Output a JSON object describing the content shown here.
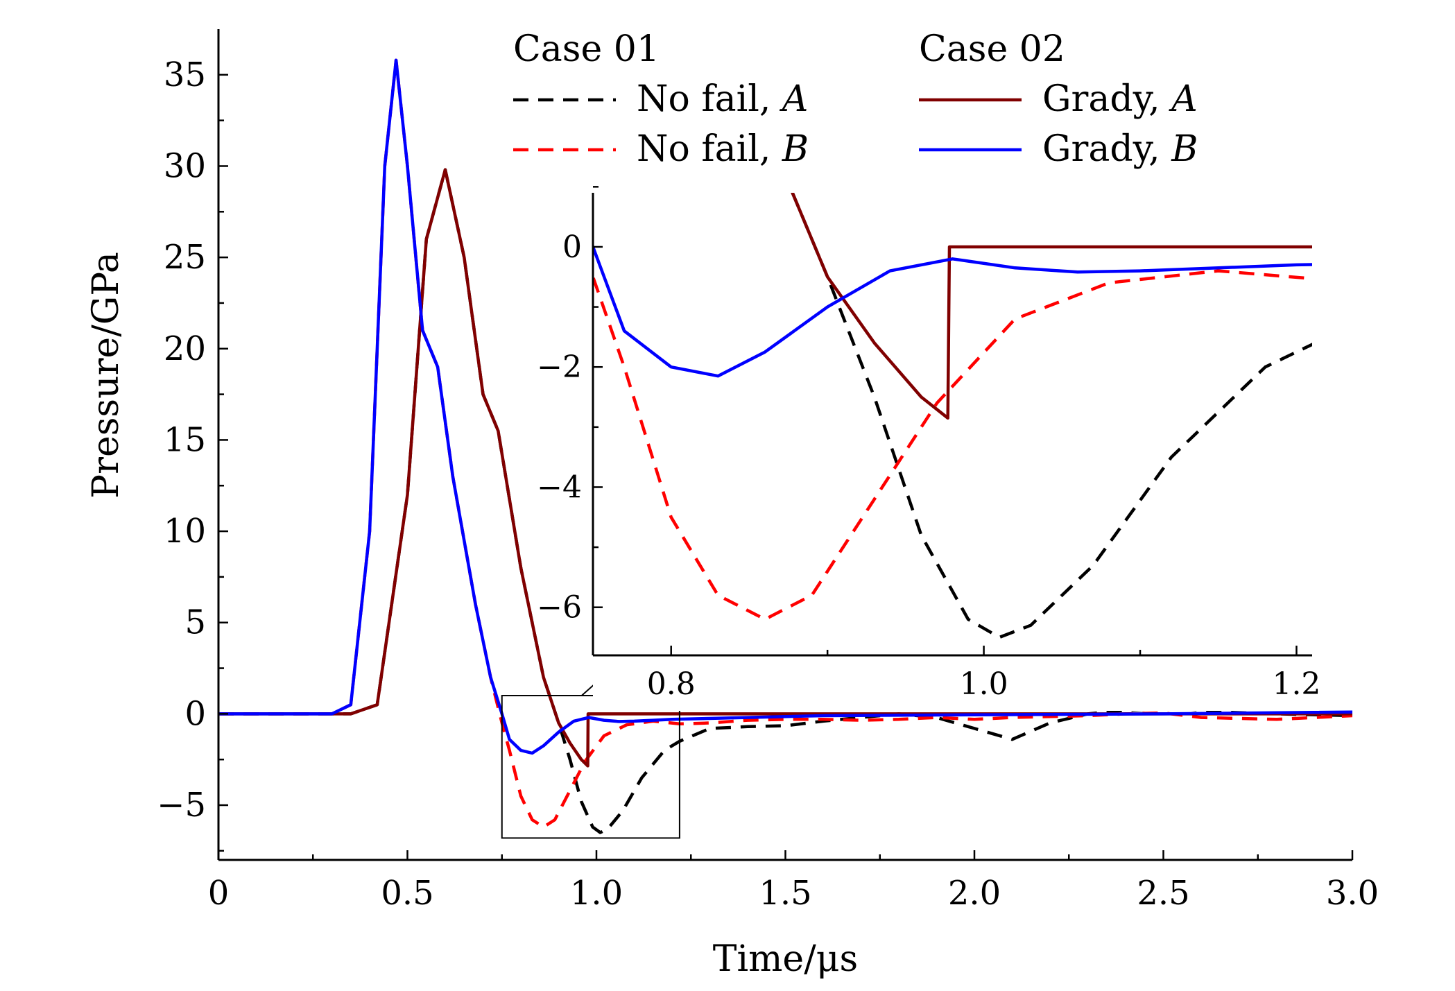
{
  "chart_data": {
    "type": "line",
    "xlabel": "Time/μs",
    "ylabel": "Pressure/GPa",
    "xlim": [
      0,
      3.0
    ],
    "ylim": [
      -8,
      37.5
    ],
    "x_ticks": [
      "0",
      "0.5",
      "1.0",
      "1.5",
      "2.0",
      "2.5",
      "3.0"
    ],
    "x_tick_values": [
      0,
      0.5,
      1.0,
      1.5,
      2.0,
      2.5,
      3.0
    ],
    "y_ticks": [
      "−5",
      "0",
      "5",
      "10",
      "15",
      "20",
      "25",
      "30",
      "35"
    ],
    "y_tick_values": [
      -5,
      0,
      5,
      10,
      15,
      20,
      25,
      30,
      35
    ],
    "legend": {
      "placement": "top-right",
      "groups": [
        {
          "title": "Case 01",
          "entries": [
            {
              "label": "No fail,",
              "label_var": "A",
              "series": 0
            },
            {
              "label": "No fail,",
              "label_var": "B",
              "series": 1
            }
          ]
        },
        {
          "title": "Case 02",
          "entries": [
            {
              "label": "Grady,",
              "label_var": "A",
              "series": 2
            },
            {
              "label": "Grady,",
              "label_var": "B",
              "series": 3
            }
          ]
        }
      ]
    },
    "series": [
      {
        "name": "No fail, A",
        "color": "#000000",
        "dash": "dashed",
        "points": [
          [
            0,
            0
          ],
          [
            0.35,
            0
          ],
          [
            0.42,
            0.5
          ],
          [
            0.5,
            12
          ],
          [
            0.55,
            26
          ],
          [
            0.6,
            29.8
          ],
          [
            0.65,
            25
          ],
          [
            0.7,
            17.5
          ],
          [
            0.74,
            15.5
          ],
          [
            0.8,
            8
          ],
          [
            0.86,
            2
          ],
          [
            0.9,
            -0.5
          ],
          [
            0.93,
            -2.5
          ],
          [
            0.96,
            -4.8
          ],
          [
            0.99,
            -6.2
          ],
          [
            1.01,
            -6.5
          ],
          [
            1.03,
            -6.3
          ],
          [
            1.07,
            -5.3
          ],
          [
            1.12,
            -3.5
          ],
          [
            1.18,
            -2
          ],
          [
            1.22,
            -1.5
          ],
          [
            1.3,
            -0.8
          ],
          [
            1.4,
            -0.7
          ],
          [
            1.5,
            -0.65
          ],
          [
            1.6,
            -0.4
          ],
          [
            1.7,
            -0.2
          ],
          [
            1.8,
            0
          ],
          [
            1.9,
            -0.2
          ],
          [
            2.0,
            -0.8
          ],
          [
            2.1,
            -1.4
          ],
          [
            2.2,
            -0.5
          ],
          [
            2.3,
            0
          ],
          [
            2.4,
            0.2
          ],
          [
            2.5,
            0.3
          ],
          [
            2.55,
            0.3
          ],
          [
            2.65,
            0.1
          ],
          [
            2.8,
            0
          ],
          [
            3.0,
            -0.1
          ]
        ]
      },
      {
        "name": "No fail, B",
        "color": "#ff0000",
        "dash": "dashed",
        "points": [
          [
            0,
            0
          ],
          [
            0.3,
            0
          ],
          [
            0.35,
            0.5
          ],
          [
            0.4,
            10
          ],
          [
            0.44,
            30
          ],
          [
            0.47,
            35.8
          ],
          [
            0.5,
            30
          ],
          [
            0.54,
            21
          ],
          [
            0.58,
            19
          ],
          [
            0.62,
            13
          ],
          [
            0.68,
            6
          ],
          [
            0.72,
            2
          ],
          [
            0.75,
            -0.5
          ],
          [
            0.77,
            -2
          ],
          [
            0.8,
            -4.5
          ],
          [
            0.83,
            -5.8
          ],
          [
            0.86,
            -6.2
          ],
          [
            0.89,
            -5.8
          ],
          [
            0.93,
            -4.2
          ],
          [
            0.97,
            -2.6
          ],
          [
            1.02,
            -1.2
          ],
          [
            1.08,
            -0.6
          ],
          [
            1.15,
            -0.4
          ],
          [
            1.22,
            -0.55
          ],
          [
            1.3,
            -0.5
          ],
          [
            1.4,
            -0.35
          ],
          [
            1.5,
            -0.3
          ],
          [
            1.6,
            -0.3
          ],
          [
            1.7,
            -0.35
          ],
          [
            1.8,
            -0.3
          ],
          [
            1.9,
            -0.2
          ],
          [
            2.0,
            -0.3
          ],
          [
            2.1,
            -0.2
          ],
          [
            2.2,
            -0.15
          ],
          [
            2.3,
            -0.1
          ],
          [
            2.4,
            0
          ],
          [
            2.5,
            0.05
          ],
          [
            2.6,
            -0.2
          ],
          [
            2.8,
            -0.3
          ],
          [
            3.0,
            -0.1
          ]
        ]
      },
      {
        "name": "Grady, A",
        "color": "#800000",
        "dash": "solid",
        "points": [
          [
            0,
            0
          ],
          [
            0.35,
            0
          ],
          [
            0.42,
            0.5
          ],
          [
            0.5,
            12
          ],
          [
            0.55,
            26
          ],
          [
            0.6,
            29.8
          ],
          [
            0.65,
            25
          ],
          [
            0.7,
            17.5
          ],
          [
            0.74,
            15.5
          ],
          [
            0.8,
            8
          ],
          [
            0.86,
            2
          ],
          [
            0.9,
            -0.5
          ],
          [
            0.93,
            -1.6
          ],
          [
            0.96,
            -2.5
          ],
          [
            0.977,
            -2.85
          ],
          [
            0.978,
            0
          ],
          [
            1.2,
            0
          ],
          [
            3.0,
            0
          ]
        ]
      },
      {
        "name": "Grady, B",
        "color": "#0000ff",
        "dash": "solid",
        "points": [
          [
            0,
            0
          ],
          [
            0.3,
            0
          ],
          [
            0.35,
            0.5
          ],
          [
            0.4,
            10
          ],
          [
            0.44,
            30
          ],
          [
            0.47,
            35.8
          ],
          [
            0.5,
            30
          ],
          [
            0.54,
            21
          ],
          [
            0.58,
            19
          ],
          [
            0.62,
            13
          ],
          [
            0.68,
            6
          ],
          [
            0.72,
            2
          ],
          [
            0.75,
            0
          ],
          [
            0.77,
            -1.4
          ],
          [
            0.8,
            -2
          ],
          [
            0.83,
            -2.15
          ],
          [
            0.86,
            -1.75
          ],
          [
            0.9,
            -1.0
          ],
          [
            0.94,
            -0.4
          ],
          [
            0.98,
            -0.2
          ],
          [
            1.02,
            -0.35
          ],
          [
            1.06,
            -0.42
          ],
          [
            1.1,
            -0.4
          ],
          [
            1.15,
            -0.35
          ],
          [
            1.2,
            -0.3
          ],
          [
            1.4,
            -0.2
          ],
          [
            1.6,
            -0.1
          ],
          [
            2.0,
            -0.05
          ],
          [
            2.5,
            0
          ],
          [
            3.0,
            0.1
          ]
        ]
      }
    ],
    "inset": {
      "xlim": [
        0.75,
        1.21
      ],
      "ylim": [
        -6.8,
        0.9
      ],
      "x_ticks": [
        "0.8",
        "1.0",
        "1.2"
      ],
      "x_tick_values": [
        0.8,
        1.0,
        1.2
      ],
      "y_ticks": [
        "−6",
        "−4",
        "−2",
        "0"
      ],
      "y_tick_values": [
        -6,
        -4,
        -2,
        0
      ],
      "zoom_box": {
        "xlim": [
          0.75,
          1.22
        ],
        "ylim": [
          -6.8,
          1.0
        ]
      }
    }
  }
}
